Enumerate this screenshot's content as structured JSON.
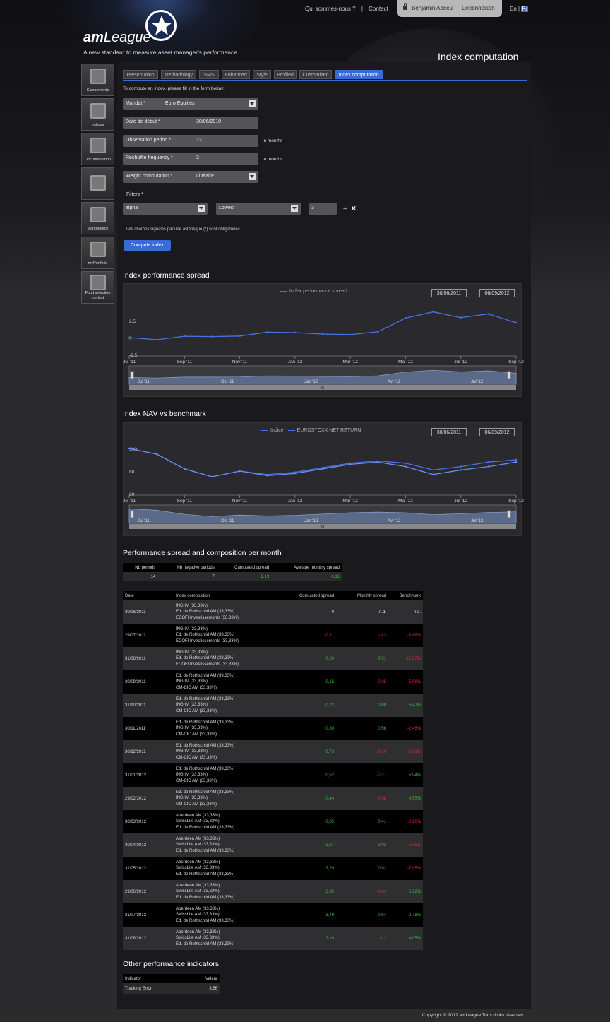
{
  "header": {
    "links": [
      "Qui sommes-nous ?",
      "|",
      "Contact"
    ],
    "user": "Benjamin Abecu",
    "logout": "Déconnexion",
    "lang_en": "En",
    "lang_sep": "|",
    "lang_fr": "Fr",
    "logo_bold": "am",
    "logo_rest": "League",
    "tagline": "A new standard to measure asset manager's performance",
    "page_title": "Index computation"
  },
  "sidebar": [
    {
      "label": "Classements",
      "icon": "trophies-icon"
    },
    {
      "label": "Indices",
      "icon": "chart-icon"
    },
    {
      "label": "Documentation",
      "icon": "documents-icon"
    },
    {
      "label": "",
      "icon": "newspaper-icon"
    },
    {
      "label": "Marketplace",
      "icon": "calculator-icon"
    },
    {
      "label": "myPortfolio",
      "icon": "portfolio-icon"
    },
    {
      "label": "Fund selection contest",
      "icon": "flags-icon"
    }
  ],
  "tabs": [
    "Presentation",
    "Methodology",
    "SMS",
    "Enhanced",
    "Style",
    "Profiled",
    "Customized",
    "Index computation"
  ],
  "form": {
    "intro": "To compute an index, please fill in the form below:",
    "mandat_label": "Mandat *",
    "mandat_value": "Euro Equities",
    "date_label": "Date de début *",
    "date_value": "30/06/2010",
    "obs_label": "Observation period *",
    "obs_value": "12",
    "obs_unit": "in months",
    "reshuffle_label": "Reshuffle frequency *",
    "reshuffle_value": "3",
    "reshuffle_unit": "in months",
    "weight_label": "Weight computation *",
    "weight_value": "Linéaire",
    "filters_label": "Filters *",
    "filter1": "alpha",
    "filter2": "Lowest",
    "filter3": "3",
    "plus": "+",
    "remove": "✕",
    "required_note": "Les champs signalés par une astérisque (*) sont obligatoires",
    "compute_button": "Compute index"
  },
  "chart1": {
    "section_title": "Index performance spread",
    "legend": "Index performance spread",
    "date_from": "30/06/2011",
    "date_to": "06/09/2012",
    "y_ticks": [
      "2.5",
      "0",
      "-2.5"
    ],
    "x_ticks": [
      "Jul '11",
      "Sep '11",
      "Nov '11",
      "Jan '12",
      "Mar '12",
      "Mai '12",
      "Jul '12",
      "Sep '12"
    ],
    "nav_ticks": [
      "Jul '11",
      "Oct '11",
      "Jan '12",
      "Avr '12",
      "Jul '12"
    ],
    "nav_handle": "III"
  },
  "chart2": {
    "section_title": "Index NAV vs benchmark",
    "legend1": "Indice",
    "legend2": "EUROSTOXX NET RETURN",
    "date_from": "30/06/2011",
    "date_to": "06/09/2012",
    "y_ticks": [
      "100",
      "80",
      "60"
    ],
    "x_ticks": [
      "Jul '11",
      "Sep '11",
      "Nov '11",
      "Jan '12",
      "Mar '12",
      "Mai '12",
      "Jul '12",
      "Sep '12"
    ],
    "nav_ticks": [
      "Jul '11",
      "Oct '11",
      "Jan '12",
      "Avr '12",
      "Jul '12"
    ],
    "nav_handle": "III"
  },
  "chart_data": [
    {
      "type": "line",
      "title": "Index performance spread",
      "xlabel": "",
      "ylabel": "",
      "ylim": [
        -2.5,
        5
      ],
      "x": [
        "30/06/2011",
        "31/07/2011",
        "31/08/2011",
        "30/09/2011",
        "31/10/2011",
        "30/11/2011",
        "31/12/2011",
        "31/01/2012",
        "29/02/2012",
        "31/03/2012",
        "30/04/2012",
        "31/05/2012",
        "30/06/2012",
        "31/07/2012",
        "31/08/2012"
      ],
      "series": [
        {
          "name": "Index performance spread",
          "values": [
            0,
            -0.31,
            0.2,
            0.15,
            0.23,
            0.8,
            0.73,
            0.52,
            0.44,
            0.85,
            2.87,
            3.79,
            2.95,
            3.49,
            2.19
          ]
        }
      ],
      "legend": "top-center"
    },
    {
      "type": "line",
      "title": "Index NAV vs benchmark",
      "xlabel": "",
      "ylabel": "",
      "ylim": [
        60,
        105
      ],
      "x": [
        "30/06/2011",
        "31/07/2011",
        "31/08/2011",
        "30/09/2011",
        "31/10/2011",
        "30/11/2011",
        "31/12/2011",
        "31/01/2012",
        "29/02/2012",
        "31/03/2012",
        "30/04/2012",
        "31/05/2012",
        "30/06/2012",
        "31/07/2012",
        "31/08/2012"
      ],
      "series": [
        {
          "name": "Indice",
          "values": [
            100,
            95,
            82,
            75,
            80,
            77,
            79,
            83,
            87,
            89,
            87,
            81,
            84,
            88,
            90
          ]
        },
        {
          "name": "EUROSTOXX NET RETURN",
          "values": [
            100,
            95,
            82,
            75,
            80,
            76,
            78,
            82,
            86,
            88,
            84,
            77,
            81,
            84,
            88
          ]
        }
      ],
      "legend": "top-center"
    }
  ],
  "perf": {
    "section_title": "Performance spread and composition per month",
    "summary_headers": [
      "Nb periods",
      "Nb negative periods",
      "Cumulated spread",
      "Average monthly spread"
    ],
    "summary_values": [
      "14",
      "7",
      "2,19",
      "0,16"
    ],
    "table_headers": [
      "Date",
      "Index composition",
      "Cumulated spread",
      "Monthly spread",
      "Benchmark"
    ],
    "rows": [
      {
        "date": "30/06/2011",
        "c1": "ING IM (33,33%)",
        "c2": "Ed. de Rothschild AM (33,33%)",
        "c3": "ECOFI Investissements (33,33%)",
        "cum": "0",
        "mon": "n.d.",
        "bench": "n.d."
      },
      {
        "date": "29/07/2011",
        "c1": "ING IM (33,33%)",
        "c2": "Ed. de Rothschild AM (33,33%)",
        "c3": "ECOFI Investissements (33,33%)",
        "cum": "-0,31",
        "mon": "-0,3",
        "bench": "-8,86%"
      },
      {
        "date": "31/08/2011",
        "c1": "ING IM (33,33%)",
        "c2": "Ed. de Rothschild AM (33,33%)",
        "c3": "ECOFI Investissements (33,33%)",
        "cum": "0,20",
        "mon": "0,51",
        "bench": "-12,65%"
      },
      {
        "date": "30/09/2011",
        "c1": "Ed. de Rothschild AM (33,33%)",
        "c2": "ING IM (33,33%)",
        "c3": "CM-CIC AM (33,33%)",
        "cum": "0,15",
        "mon": "-0,05",
        "bench": "-5,99%"
      },
      {
        "date": "31/10/2011",
        "c1": "Ed. de Rothschild AM (33,33%)",
        "c2": "ING IM (33,33%)",
        "c3": "CM-CIC AM (33,33%)",
        "cum": "0,23",
        "mon": "0,08",
        "bench": "6,47%"
      },
      {
        "date": "30/11/2011",
        "c1": "Ed. de Rothschild AM (33,33%)",
        "c2": "ING IM (33,33%)",
        "c3": "CM-CIC AM (33,33%)",
        "cum": "0,80",
        "mon": "0,56",
        "bench": "-2,45%"
      },
      {
        "date": "30/12/2011",
        "c1": "Ed. de Rothschild AM (33,33%)",
        "c2": "ING IM (33,33%)",
        "c3": "CM-CIC AM (33,33%)",
        "cum": "0,73",
        "mon": "-0,10",
        "bench": "-0,01%"
      },
      {
        "date": "31/01/2012",
        "c1": "Ed. de Rothschild AM (33,33%)",
        "c2": "ING IM (33,33%)",
        "c3": "CM-CIC AM (33,33%)",
        "cum": "0,52",
        "mon": "-0,27",
        "bench": "5,94%"
      },
      {
        "date": "29/02/2012",
        "c1": "Ed. de Rothschild AM (33,33%)",
        "c2": "ING IM (33,33%)",
        "c3": "CM-CIC AM (33,33%)",
        "cum": "0,44",
        "mon": "-0,08",
        "bench": "4,55%"
      },
      {
        "date": "30/03/2012",
        "c1": "Aberdeen AM (33,33%)",
        "c2": "SwissLife AM (33,33%)",
        "c3": "Ed. de Rothschild AM (33,33%)",
        "cum": "0,85",
        "mon": "0,41",
        "bench": "-0,26%"
      },
      {
        "date": "30/04/2012",
        "c1": "Aberdeen AM (33,33%)",
        "c2": "SwissLife AM (33,33%)",
        "c3": "Ed. de Rothschild AM (33,33%)",
        "cum": "2,87",
        "mon": "2,02",
        "bench": "-5,05%"
      },
      {
        "date": "31/05/2012",
        "c1": "Aberdeen AM (33,33%)",
        "c2": "SwissLife AM (33,33%)",
        "c3": "Ed. de Rothschild AM (33,33%)",
        "cum": "3,79",
        "mon": "0,92",
        "bench": "-7,05%"
      },
      {
        "date": "29/06/2012",
        "c1": "Aberdeen AM (33,33%)",
        "c2": "SwissLife AM (33,33%)",
        "c3": "Ed. de Rothschild AM (33,33%)",
        "cum": "2,95",
        "mon": "-0,84",
        "bench": "6,22%"
      },
      {
        "date": "31/07/2012",
        "c1": "Aberdeen AM (33,33%)",
        "c2": "SwissLife AM (33,33%)",
        "c3": "Ed. de Rothschild AM (33,33%)",
        "cum": "3,49",
        "mon": "0,54",
        "bench": "2,78%"
      },
      {
        "date": "31/08/2012",
        "c1": "Aberdeen AM (33,33%)",
        "c2": "SwissLife AM (33,33%)",
        "c3": "Ed. de Rothschild AM (33,33%)",
        "cum": "2,19",
        "mon": "-1,3",
        "bench": "4,05%"
      }
    ]
  },
  "other": {
    "section_title": "Other performance indicators",
    "h_indicator": "Indicator",
    "h_value": "Valeur",
    "indicator": "Tracking Error",
    "value": "3,56"
  },
  "footer": "Copyright © 2012 amLeague Tous droits réservés",
  "colors": {
    "accent": "#3a6ad6",
    "positive": "#3cb83c",
    "negative": "#e02a2a",
    "line": "#4a72e8"
  }
}
